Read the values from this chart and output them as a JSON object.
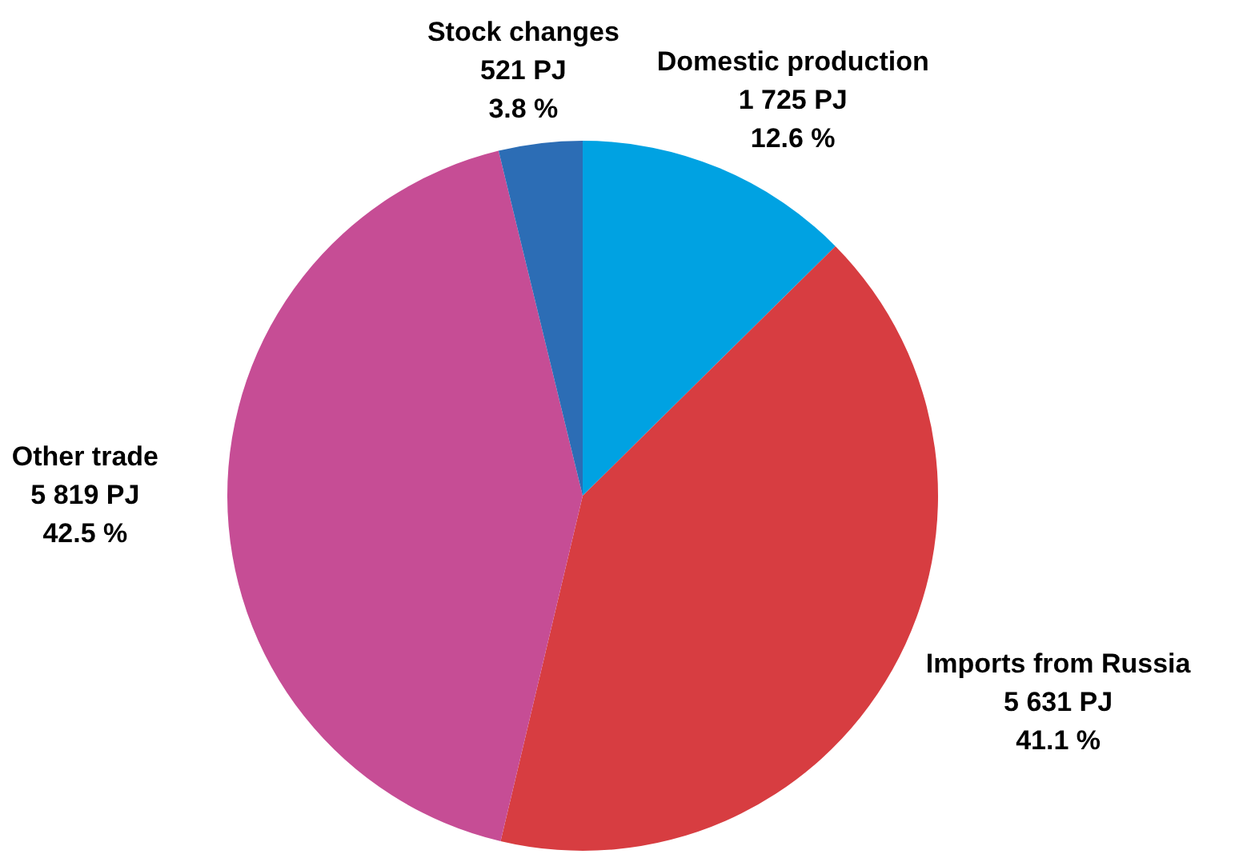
{
  "chart_data": {
    "type": "pie",
    "categories": [
      "Domestic production",
      "Imports from Russia",
      "Other trade",
      "Stock changes"
    ],
    "values": [
      1725,
      5631,
      5819,
      521
    ],
    "value_labels": [
      "1 725 PJ\n12.6 %",
      "5 631 PJ\n41.1 %",
      "5 819 PJ\n42.5 %",
      "521 PJ\n3.8 %"
    ],
    "colors": [
      "#00a2e2",
      "#d73d41",
      "#c64d95",
      "#2c6db5"
    ]
  }
}
